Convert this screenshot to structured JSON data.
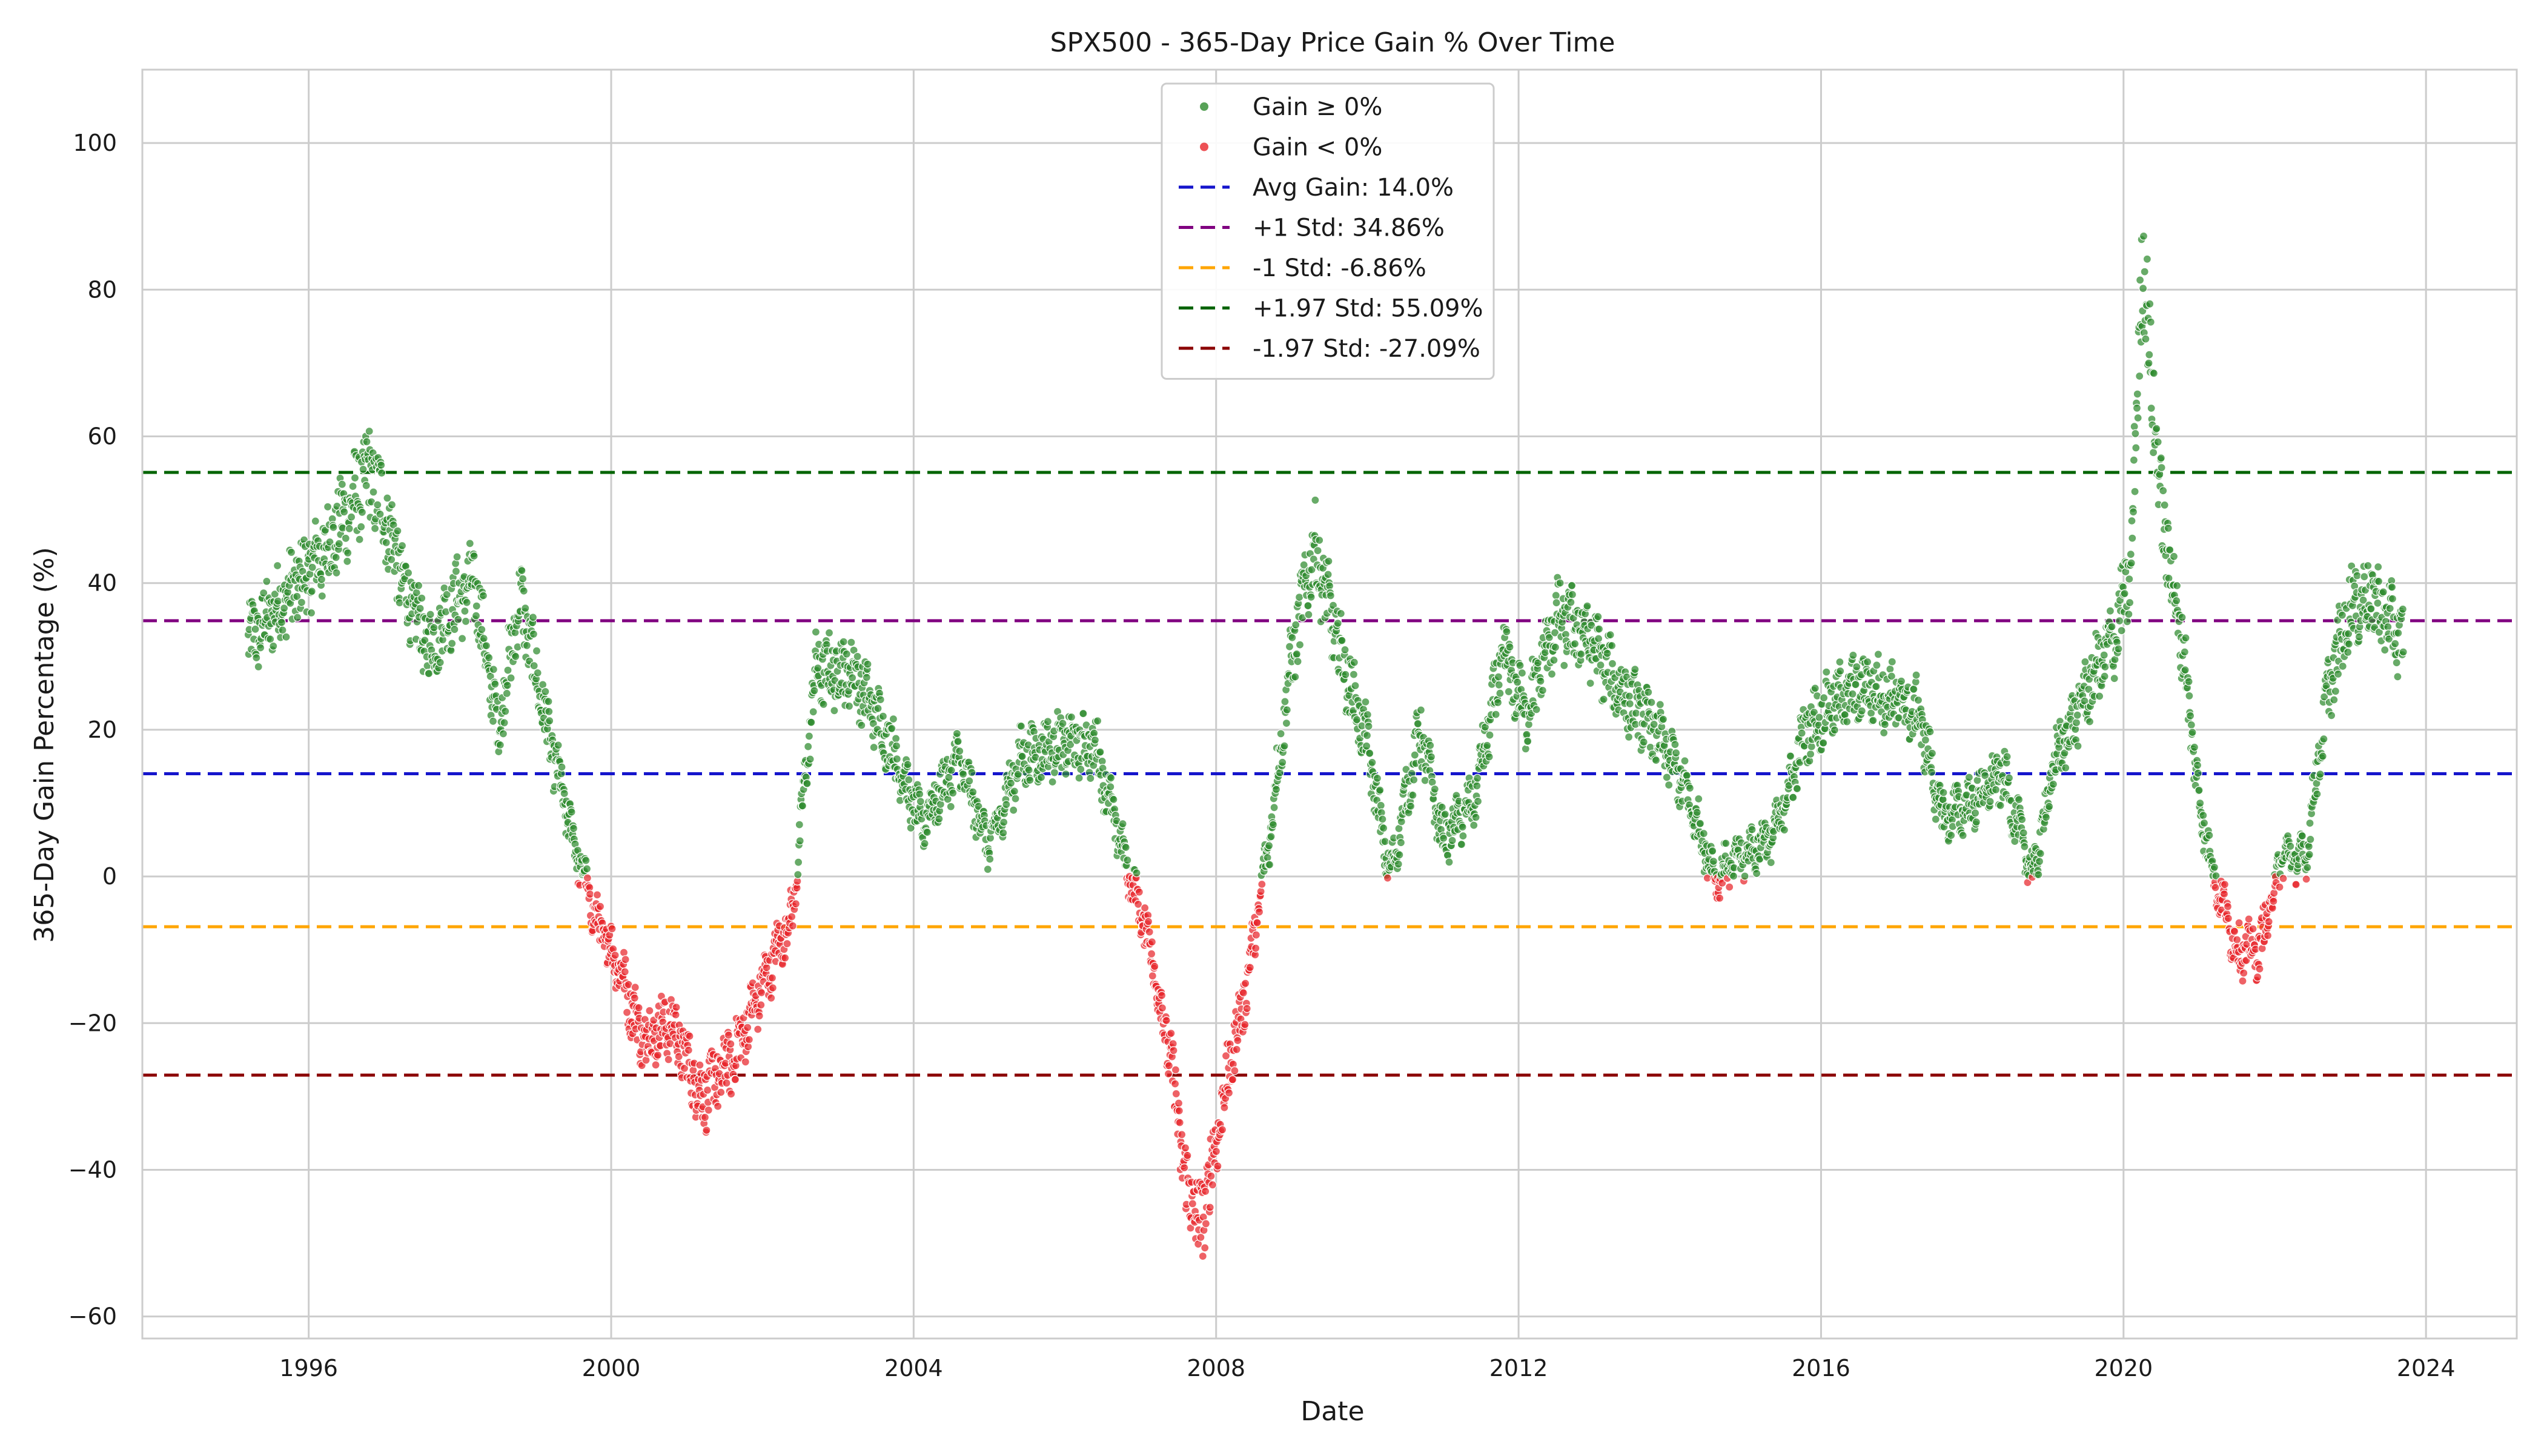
{
  "chart_data": {
    "type": "scatter",
    "title": "SPX500 - 365-Day Price Gain % Over Time",
    "xlabel": "Date",
    "ylabel": "365-Day Gain Percentage (%)",
    "x_range": [
      1993.8,
      2025.2
    ],
    "y_range": [
      -63,
      110
    ],
    "x_ticks": [
      1996,
      2000,
      2004,
      2008,
      2012,
      2016,
      2020,
      2024
    ],
    "y_ticks": [
      -60,
      -40,
      -20,
      0,
      20,
      40,
      60,
      80,
      100
    ],
    "grid": true,
    "legend_position": "top-center",
    "data_start": 1995.2,
    "data_end": 2023.7,
    "series": [
      {
        "name": "Gain ≥ 0%",
        "color": "#2e8b2e",
        "marker": "dot",
        "condition": ">= 0"
      },
      {
        "name": "Gain < 0%",
        "color": "#e8262b",
        "marker": "dot",
        "condition": "< 0"
      }
    ],
    "gain_curve_approx": [
      [
        1995.2,
        32
      ],
      [
        1995.7,
        38
      ],
      [
        1996.2,
        44
      ],
      [
        1996.8,
        55
      ],
      [
        1997.0,
        50
      ],
      [
        1997.3,
        38
      ],
      [
        1997.6,
        31
      ],
      [
        1997.9,
        37
      ],
      [
        1998.2,
        40
      ],
      [
        1998.5,
        20
      ],
      [
        1998.8,
        38
      ],
      [
        1999.2,
        18
      ],
      [
        1999.5,
        5
      ],
      [
        1999.8,
        -6
      ],
      [
        2000.1,
        -12
      ],
      [
        2000.4,
        -22
      ],
      [
        2000.8,
        -20
      ],
      [
        2001.2,
        -30
      ],
      [
        2001.6,
        -25
      ],
      [
        2002.0,
        -15
      ],
      [
        2002.4,
        -5
      ],
      [
        2002.7,
        28
      ],
      [
        2003.2,
        28
      ],
      [
        2003.7,
        18
      ],
      [
        2004.1,
        7
      ],
      [
        2004.6,
        16
      ],
      [
        2005.0,
        4
      ],
      [
        2005.4,
        16
      ],
      [
        2005.9,
        18
      ],
      [
        2006.4,
        18
      ],
      [
        2006.8,
        2
      ],
      [
        2007.1,
        -8
      ],
      [
        2007.4,
        -25
      ],
      [
        2007.6,
        -42
      ],
      [
        2007.8,
        -48
      ],
      [
        2008.1,
        -30
      ],
      [
        2008.4,
        -15
      ],
      [
        2008.7,
        5
      ],
      [
        2009.0,
        30
      ],
      [
        2009.3,
        45
      ],
      [
        2009.6,
        32
      ],
      [
        2010.0,
        18
      ],
      [
        2010.3,
        0
      ],
      [
        2010.7,
        20
      ],
      [
        2011.0,
        5
      ],
      [
        2011.4,
        10
      ],
      [
        2011.8,
        30
      ],
      [
        2012.1,
        22
      ],
      [
        2012.5,
        35
      ],
      [
        2012.9,
        33
      ],
      [
        2013.3,
        26
      ],
      [
        2013.8,
        20
      ],
      [
        2014.2,
        12
      ],
      [
        2014.6,
        0
      ],
      [
        2015.0,
        3
      ],
      [
        2015.4,
        6
      ],
      [
        2015.8,
        20
      ],
      [
        2016.2,
        24
      ],
      [
        2016.6,
        26
      ],
      [
        2017.0,
        24
      ],
      [
        2017.3,
        22
      ],
      [
        2017.6,
        8
      ],
      [
        2018.0,
        10
      ],
      [
        2018.4,
        14
      ],
      [
        2018.8,
        0
      ],
      [
        2019.1,
        16
      ],
      [
        2019.5,
        25
      ],
      [
        2019.9,
        33
      ],
      [
        2020.1,
        42
      ],
      [
        2020.25,
        85
      ],
      [
        2020.5,
        50
      ],
      [
        2020.8,
        30
      ],
      [
        2021.0,
        10
      ],
      [
        2021.2,
        0
      ],
      [
        2021.5,
        -10
      ],
      [
        2021.8,
        -10
      ],
      [
        2022.1,
        3
      ],
      [
        2022.4,
        2
      ],
      [
        2022.7,
        25
      ],
      [
        2023.0,
        37
      ],
      [
        2023.3,
        38
      ],
      [
        2023.7,
        32
      ]
    ],
    "reference_lines": [
      {
        "label": "Avg Gain: 14.0%",
        "value": 14.0,
        "color": "#1515cc"
      },
      {
        "label": "+1 Std: 34.86%",
        "value": 34.86,
        "color": "#800080"
      },
      {
        "label": "-1 Std: -6.86%",
        "value": -6.86,
        "color": "#ffa500"
      },
      {
        "label": "+1.97 Std: 55.09%",
        "value": 55.09,
        "color": "#006400"
      },
      {
        "label": "-1.97 Std: -27.09%",
        "value": -27.09,
        "color": "#8b0000"
      }
    ]
  }
}
